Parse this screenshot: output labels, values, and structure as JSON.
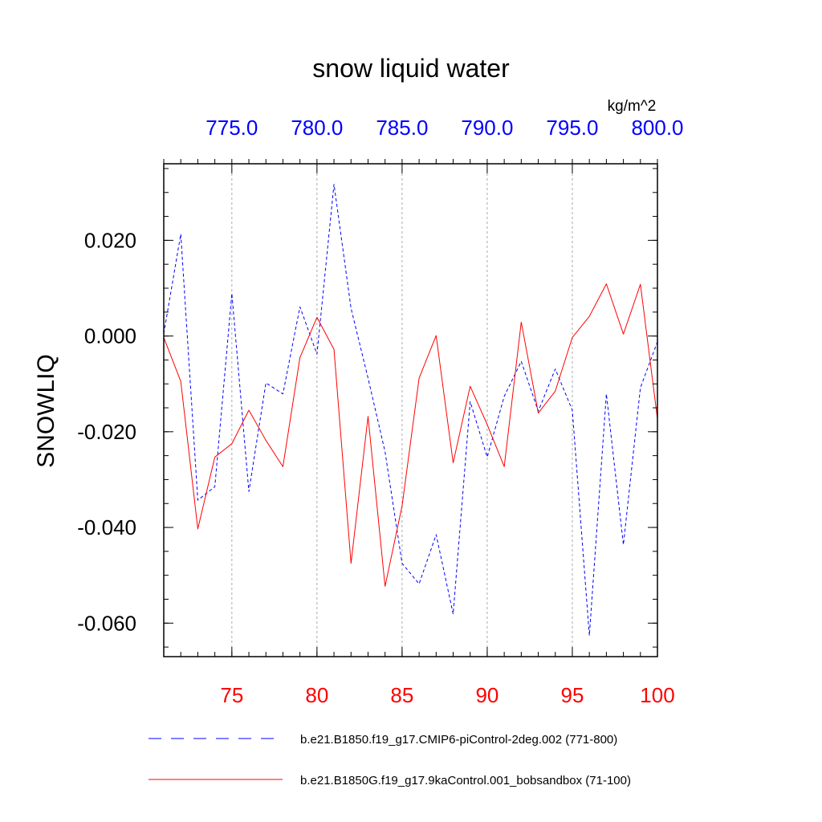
{
  "chart_data": {
    "type": "line",
    "title": "snow liquid water",
    "ylabel": "SNOWLIQ",
    "units": "kg/m^2",
    "ylim": [
      -0.067,
      0.036
    ],
    "yticks": [
      -0.06,
      -0.04,
      -0.02,
      0.0,
      0.02
    ],
    "ytick_labels": [
      "-0.060",
      "-0.040",
      "-0.020",
      "0.000",
      "0.020"
    ],
    "y_minor_step": 0.005,
    "x_bottom": {
      "range": [
        71,
        100
      ],
      "ticks": [
        75,
        80,
        85,
        90,
        95,
        100
      ],
      "tick_labels": [
        "75",
        "80",
        "85",
        "90",
        "95",
        "100"
      ],
      "color": "#ff0000"
    },
    "x_top": {
      "range": [
        771,
        800
      ],
      "ticks": [
        775,
        780,
        785,
        790,
        795,
        800
      ],
      "tick_labels": [
        "775.0",
        "780.0",
        "785.0",
        "790.0",
        "795.0",
        "800.0"
      ],
      "color": "#0000ff"
    },
    "grid": "vertical-dashed",
    "legend_position": "bottom",
    "series": [
      {
        "name": "b.e21.B1850.f19_g17.CMIP6-piControl-2deg.002 (771-800)",
        "axis": "top",
        "style": "dashed",
        "color": "#0000ff",
        "x": [
          771,
          772,
          773,
          774,
          775,
          776,
          777,
          778,
          779,
          780,
          781,
          782,
          783,
          784,
          785,
          786,
          787,
          788,
          789,
          790,
          791,
          792,
          793,
          794,
          795,
          796,
          797,
          798,
          799,
          800
        ],
        "values": [
          0.0005,
          0.0213,
          -0.0343,
          -0.0315,
          0.0089,
          -0.0325,
          -0.0098,
          -0.0121,
          0.0061,
          -0.0038,
          0.0317,
          0.0058,
          -0.0088,
          -0.0242,
          -0.0475,
          -0.0518,
          -0.0415,
          -0.0581,
          -0.0137,
          -0.0253,
          -0.0126,
          -0.0053,
          -0.0157,
          -0.0069,
          -0.0155,
          -0.0626,
          -0.0121,
          -0.0436,
          -0.0108,
          -0.0012
        ]
      },
      {
        "name": "b.e21.B1850G.f19_g17.9kaControl.001_bobsandbox (71-100)",
        "axis": "bottom",
        "style": "solid",
        "color": "#ff0000",
        "x": [
          71,
          72,
          73,
          74,
          75,
          76,
          77,
          78,
          79,
          80,
          81,
          82,
          83,
          84,
          85,
          86,
          87,
          88,
          89,
          90,
          91,
          92,
          93,
          94,
          95,
          96,
          97,
          98,
          99,
          100
        ],
        "values": [
          -0.0003,
          -0.0095,
          -0.0403,
          -0.0253,
          -0.0225,
          -0.0155,
          -0.0218,
          -0.0273,
          -0.0045,
          0.0039,
          -0.0028,
          -0.0475,
          -0.0168,
          -0.0523,
          -0.0355,
          -0.0088,
          0.0001,
          -0.0265,
          -0.0105,
          -0.0185,
          -0.0273,
          0.0029,
          -0.0161,
          -0.0115,
          -0.0003,
          0.0041,
          0.0109,
          0.0004,
          0.0108,
          -0.0173
        ]
      }
    ]
  }
}
